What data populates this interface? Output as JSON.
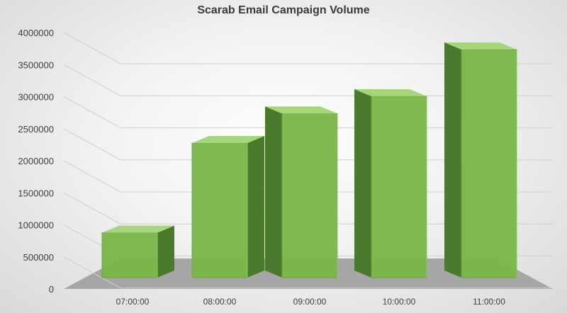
{
  "chart_data": {
    "type": "bar",
    "title": "Scarab Email Campaign Volume",
    "categories": [
      "07:00:00",
      "08:00:00",
      "09:00:00",
      "10:00:00",
      "11:00:00"
    ],
    "values": [
      700000,
      2100000,
      2560000,
      2830000,
      3560000
    ],
    "xlabel": "",
    "ylabel": "",
    "ylim": [
      0,
      4000000
    ],
    "yticks": [
      0,
      500000,
      1000000,
      1500000,
      2000000,
      2500000,
      3000000,
      3500000,
      4000000
    ],
    "grid": true,
    "legend": "none",
    "style": "3d-bar",
    "colors": {
      "front": "#7ab648",
      "top": "#a6d67c",
      "side": "#4c7a2c",
      "floor": "#a6a6a6"
    }
  }
}
